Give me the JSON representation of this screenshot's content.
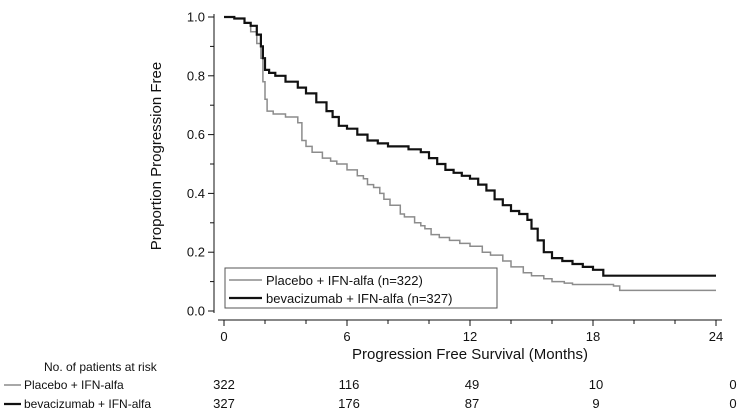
{
  "chart_data": {
    "type": "line",
    "xlabel": "Progression Free Survival (Months)",
    "ylabel": "Proportion Progression Free",
    "xlim": [
      0,
      24
    ],
    "ylim": [
      0,
      1.0
    ],
    "xticks": [
      0,
      6,
      12,
      18,
      24
    ],
    "yticks": [
      0.0,
      0.2,
      0.4,
      0.6,
      0.8,
      1.0
    ],
    "ytick_labels": [
      "0.0",
      "0.2",
      "0.4",
      "0.6",
      "0.8",
      "1.0"
    ],
    "legend_position": "bottom-left",
    "grid": false,
    "series": [
      {
        "name": "Placebo + IFN-alfa (n=322)",
        "color": "#8c8c8c",
        "x": [
          0,
          0.5,
          1.0,
          1.3,
          1.6,
          1.8,
          1.9,
          2.0,
          2.1,
          2.4,
          3.0,
          3.6,
          3.8,
          4.0,
          4.3,
          4.8,
          5.2,
          5.5,
          6.0,
          6.5,
          6.8,
          7.0,
          7.3,
          7.6,
          7.8,
          8.1,
          8.6,
          8.8,
          9.3,
          9.6,
          9.8,
          10.1,
          10.5,
          11.0,
          11.5,
          12.0,
          12.6,
          13.0,
          13.6,
          14.0,
          14.6,
          15.0,
          15.6,
          16.0,
          16.6,
          17.0,
          17.6,
          18.0,
          18.6,
          19.0,
          19.3,
          24
        ],
        "y": [
          1.0,
          0.995,
          0.98,
          0.95,
          0.91,
          0.86,
          0.78,
          0.72,
          0.68,
          0.67,
          0.66,
          0.64,
          0.58,
          0.56,
          0.54,
          0.52,
          0.51,
          0.5,
          0.48,
          0.46,
          0.45,
          0.43,
          0.42,
          0.4,
          0.38,
          0.36,
          0.33,
          0.32,
          0.3,
          0.29,
          0.28,
          0.26,
          0.25,
          0.24,
          0.23,
          0.22,
          0.2,
          0.19,
          0.17,
          0.15,
          0.13,
          0.12,
          0.11,
          0.1,
          0.095,
          0.09,
          0.09,
          0.09,
          0.09,
          0.085,
          0.07,
          0.07
        ]
      },
      {
        "name": "bevacizumab + IFN-alfa (n=327)",
        "color": "#111111",
        "x": [
          0,
          0.5,
          1.0,
          1.3,
          1.6,
          1.8,
          1.9,
          2.0,
          2.2,
          2.5,
          3.0,
          3.6,
          4.0,
          4.5,
          5.0,
          5.3,
          5.6,
          6.0,
          6.5,
          7.0,
          7.5,
          8.0,
          8.5,
          9.0,
          9.6,
          10.0,
          10.4,
          10.8,
          11.2,
          11.6,
          12.0,
          12.4,
          12.8,
          13.2,
          13.6,
          14.0,
          14.4,
          14.8,
          15.0,
          15.3,
          15.6,
          16.0,
          16.5,
          17.0,
          17.5,
          18.0,
          18.5,
          19.0,
          24
        ],
        "y": [
          1.0,
          0.995,
          0.98,
          0.97,
          0.94,
          0.9,
          0.86,
          0.82,
          0.81,
          0.8,
          0.78,
          0.76,
          0.74,
          0.71,
          0.68,
          0.66,
          0.63,
          0.62,
          0.6,
          0.58,
          0.57,
          0.56,
          0.56,
          0.55,
          0.54,
          0.52,
          0.5,
          0.48,
          0.47,
          0.46,
          0.45,
          0.43,
          0.41,
          0.38,
          0.36,
          0.34,
          0.33,
          0.31,
          0.28,
          0.24,
          0.2,
          0.18,
          0.17,
          0.16,
          0.15,
          0.14,
          0.12,
          0.12,
          0.12
        ]
      }
    ],
    "legend": [
      "Placebo + IFN-alfa (n=322)",
      "bevacizumab + IFN-alfa (n=327)"
    ]
  },
  "risk_table": {
    "header": "No. of patients at risk",
    "rows": [
      {
        "label": "Placebo + IFN-alfa",
        "color": "#8c8c8c",
        "values": [
          "322",
          "116",
          "49",
          "10",
          "0"
        ]
      },
      {
        "label": "bevacizumab + IFN-alfa",
        "color": "#111111",
        "values": [
          "327",
          "176",
          "87",
          "9",
          "0"
        ]
      }
    ]
  }
}
